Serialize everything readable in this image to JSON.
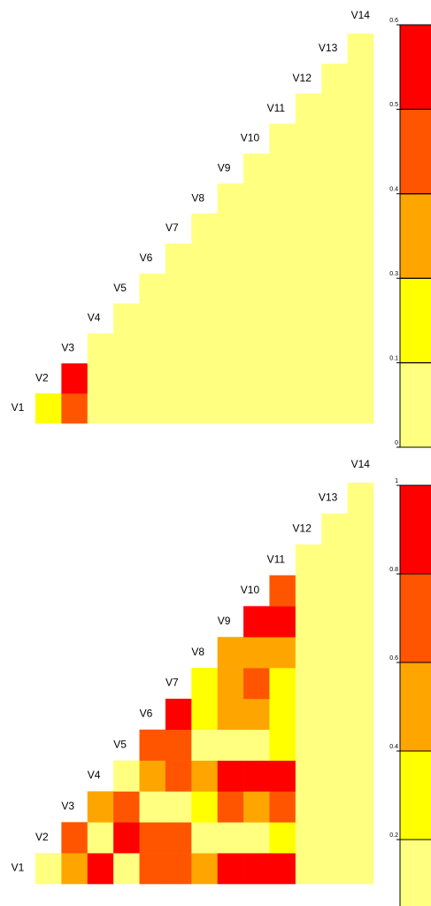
{
  "chart_data": [
    {
      "type": "heatmap",
      "labels": [
        "V1",
        "V2",
        "V3",
        "V4",
        "V5",
        "V6",
        "V7",
        "V8",
        "V9",
        "V10",
        "V11",
        "V12",
        "V13",
        "V14"
      ],
      "rows": [
        [
          0.2,
          0.45,
          0.05,
          0.05,
          0.05,
          0.05,
          0.05,
          0.05,
          0.05,
          0.05,
          0.05,
          0.05,
          0.05
        ],
        [
          0.55,
          0.05,
          0.05,
          0.05,
          0.05,
          0.05,
          0.05,
          0.05,
          0.05,
          0.05,
          0.05,
          0.05
        ],
        [
          0.05,
          0.05,
          0.05,
          0.05,
          0.05,
          0.05,
          0.05,
          0.05,
          0.05,
          0.05,
          0.05
        ],
        [
          0.05,
          0.05,
          0.05,
          0.05,
          0.05,
          0.05,
          0.05,
          0.05,
          0.05,
          0.05
        ],
        [
          0.05,
          0.05,
          0.05,
          0.05,
          0.05,
          0.05,
          0.05,
          0.05,
          0.05
        ],
        [
          0.05,
          0.05,
          0.05,
          0.05,
          0.05,
          0.05,
          0.05,
          0.05
        ],
        [
          0.05,
          0.05,
          0.05,
          0.05,
          0.05,
          0.05,
          0.05
        ],
        [
          0.05,
          0.05,
          0.05,
          0.05,
          0.05,
          0.05
        ],
        [
          0.05,
          0.05,
          0.05,
          0.05,
          0.05
        ],
        [
          0.05,
          0.05,
          0.05,
          0.05
        ],
        [
          0.05,
          0.05,
          0.05
        ],
        [
          0.05,
          0.05
        ],
        [
          0.05
        ]
      ],
      "bounds": [
        0,
        0.1,
        0.3,
        0.4,
        0.5,
        0.6
      ],
      "colors": [
        "#ffff80",
        "#ffff00",
        "#ffa500",
        "#ff5500",
        "#ff0000"
      ],
      "ticks": [
        0,
        0.1,
        0.3,
        0.4,
        0.5,
        0.6
      ]
    },
    {
      "type": "heatmap",
      "labels": [
        "V1",
        "V2",
        "V3",
        "V4",
        "V5",
        "V6",
        "V7",
        "V8",
        "V9",
        "V10",
        "V11",
        "V12",
        "V13",
        "V14"
      ],
      "rows": [
        [
          0.1,
          0.5,
          0.9,
          0.1,
          0.7,
          0.7,
          0.5,
          0.9,
          0.9,
          0.9,
          0.1,
          0.1,
          0.1
        ],
        [
          0.7,
          0.1,
          0.9,
          0.7,
          0.7,
          0.1,
          0.1,
          0.1,
          0.3,
          0.1,
          0.1,
          0.1
        ],
        [
          0.5,
          0.7,
          0.1,
          0.1,
          0.3,
          0.7,
          0.5,
          0.7,
          0.1,
          0.1,
          0.1
        ],
        [
          0.1,
          0.5,
          0.7,
          0.5,
          0.9,
          0.9,
          0.9,
          0.1,
          0.1,
          0.1
        ],
        [
          0.7,
          0.7,
          0.1,
          0.1,
          0.1,
          0.3,
          0.1,
          0.1,
          0.1
        ],
        [
          0.9,
          0.3,
          0.5,
          0.5,
          0.3,
          0.1,
          0.1,
          0.1
        ],
        [
          0.3,
          0.5,
          0.7,
          0.3,
          0.1,
          0.1,
          0.1
        ],
        [
          0.5,
          0.5,
          0.5,
          0.1,
          0.1,
          0.1
        ],
        [
          0.9,
          0.9,
          0.1,
          0.1,
          0.1
        ],
        [
          0.7,
          0.1,
          0.1,
          0.1
        ],
        [
          0.1,
          0.1,
          0.1
        ],
        [
          0.1,
          0.1
        ],
        [
          0.1
        ]
      ],
      "bounds": [
        0,
        0.2,
        0.4,
        0.6,
        0.8,
        1
      ],
      "colors": [
        "#ffff80",
        "#ffff00",
        "#ffa500",
        "#ff5500",
        "#ff0000"
      ],
      "ticks": [
        0.2,
        0.4,
        0.6,
        0.8,
        1
      ]
    }
  ]
}
